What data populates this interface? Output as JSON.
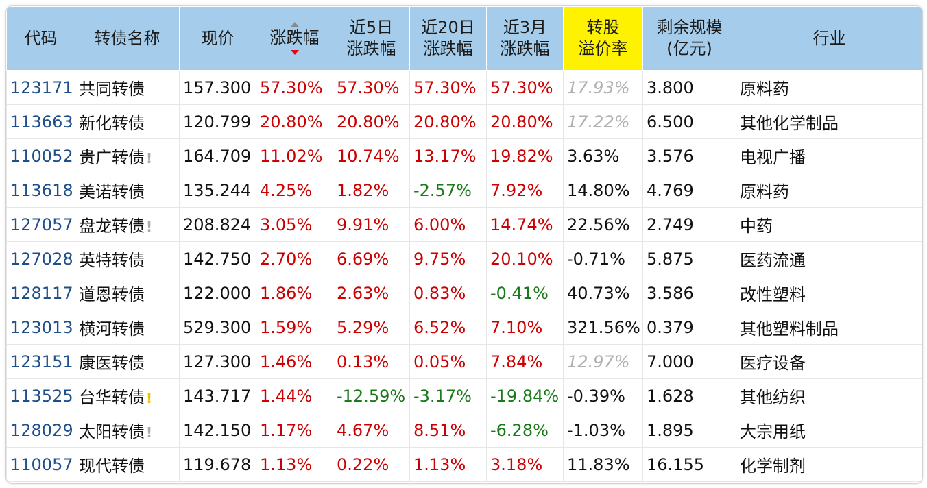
{
  "headers": {
    "code": "代码",
    "name": "转债名称",
    "price": "现价",
    "change": "涨跌幅",
    "change5_l1": "近5日",
    "change5_l2": "涨跌幅",
    "change20_l1": "近20日",
    "change20_l2": "涨跌幅",
    "change3m_l1": "近3月",
    "change3m_l2": "涨跌幅",
    "premium_l1": "转股",
    "premium_l2": "溢价率",
    "scale_l1": "剩余规模",
    "scale_l2": "(亿元)",
    "industry": "行业"
  },
  "sort": {
    "column": "change",
    "direction": "descending"
  },
  "rows": [
    {
      "code": "123171",
      "name": "共同转债",
      "warn": "",
      "price": "157.300",
      "change": "57.30%",
      "change5": "57.30%",
      "change20": "57.30%",
      "change3m": "57.30%",
      "premium": "17.93%",
      "premium_muted": true,
      "scale": "3.800",
      "industry": "原料药"
    },
    {
      "code": "113663",
      "name": "新化转债",
      "warn": "",
      "price": "120.799",
      "change": "20.80%",
      "change5": "20.80%",
      "change20": "20.80%",
      "change3m": "20.80%",
      "premium": "17.22%",
      "premium_muted": true,
      "scale": "6.500",
      "industry": "其他化学制品"
    },
    {
      "code": "110052",
      "name": "贵广转债",
      "warn": "grey",
      "price": "164.709",
      "change": "11.02%",
      "change5": "10.74%",
      "change20": "13.17%",
      "change3m": "19.82%",
      "premium": "3.63%",
      "premium_muted": false,
      "scale": "3.576",
      "industry": "电视广播"
    },
    {
      "code": "113618",
      "name": "美诺转债",
      "warn": "",
      "price": "135.244",
      "change": "4.25%",
      "change5": "1.82%",
      "change20": "-2.57%",
      "change3m": "7.92%",
      "premium": "14.80%",
      "premium_muted": false,
      "scale": "4.769",
      "industry": "原料药"
    },
    {
      "code": "127057",
      "name": "盘龙转债",
      "warn": "grey",
      "price": "208.824",
      "change": "3.05%",
      "change5": "9.91%",
      "change20": "6.00%",
      "change3m": "14.74%",
      "premium": "22.56%",
      "premium_muted": false,
      "scale": "2.749",
      "industry": "中药"
    },
    {
      "code": "127028",
      "name": "英特转债",
      "warn": "",
      "price": "142.750",
      "change": "2.70%",
      "change5": "6.69%",
      "change20": "9.75%",
      "change3m": "20.10%",
      "premium": "-0.71%",
      "premium_muted": false,
      "scale": "5.875",
      "industry": "医药流通"
    },
    {
      "code": "128117",
      "name": "道恩转债",
      "warn": "",
      "price": "122.000",
      "change": "1.86%",
      "change5": "2.63%",
      "change20": "0.83%",
      "change3m": "-0.41%",
      "premium": "40.73%",
      "premium_muted": false,
      "scale": "3.586",
      "industry": "改性塑料"
    },
    {
      "code": "123013",
      "name": "横河转债",
      "warn": "",
      "price": "529.300",
      "change": "1.59%",
      "change5": "5.29%",
      "change20": "6.52%",
      "change3m": "7.10%",
      "premium": "321.56%",
      "premium_muted": false,
      "scale": "0.379",
      "industry": "其他塑料制品"
    },
    {
      "code": "123151",
      "name": "康医转债",
      "warn": "",
      "price": "127.300",
      "change": "1.46%",
      "change5": "0.13%",
      "change20": "0.05%",
      "change3m": "7.84%",
      "premium": "12.97%",
      "premium_muted": true,
      "scale": "7.000",
      "industry": "医疗设备"
    },
    {
      "code": "113525",
      "name": "台华转债",
      "warn": "gold",
      "price": "143.717",
      "change": "1.44%",
      "change5": "-12.59%",
      "change20": "-3.17%",
      "change3m": "-19.84%",
      "premium": "-0.39%",
      "premium_muted": false,
      "scale": "1.628",
      "industry": "其他纺织"
    },
    {
      "code": "128029",
      "name": "太阳转债",
      "warn": "grey",
      "price": "142.150",
      "change": "1.17%",
      "change5": "4.67%",
      "change20": "8.51%",
      "change3m": "-6.28%",
      "premium": "-1.03%",
      "premium_muted": false,
      "scale": "1.895",
      "industry": "大宗用纸"
    },
    {
      "code": "110057",
      "name": "现代转债",
      "warn": "",
      "price": "119.678",
      "change": "1.13%",
      "change5": "0.22%",
      "change20": "1.13%",
      "change3m": "3.18%",
      "premium": "11.83%",
      "premium_muted": false,
      "scale": "16.155",
      "industry": "化学制剂"
    }
  ]
}
